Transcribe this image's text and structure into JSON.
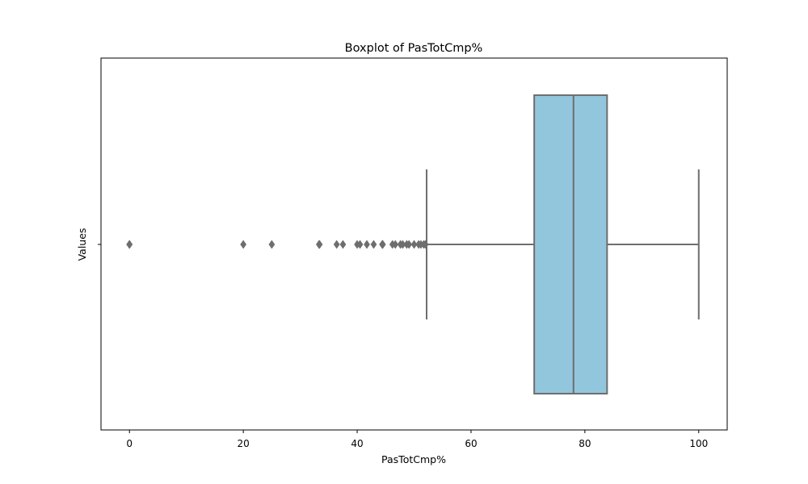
{
  "chart_data": {
    "type": "boxplot",
    "title": "Boxplot of PasTotCmp%",
    "xlabel": "PasTotCmp%",
    "ylabel": "Values",
    "xlim": [
      -5,
      105
    ],
    "x_ticks": [
      0,
      20,
      40,
      60,
      80,
      100
    ],
    "y_ticks": [
      ""
    ],
    "grid": false,
    "orientation": "horizontal",
    "box": {
      "whisker_low": 52.2,
      "q1": 71.1,
      "median": 78.0,
      "q3": 83.9,
      "whisker_high": 100.0
    },
    "outliers": [
      0,
      0,
      0,
      20.0,
      25.0,
      33.3,
      33.4,
      36.4,
      37.5,
      40.0,
      40.5,
      41.7,
      42.9,
      44.4,
      44.5,
      46.2,
      46.7,
      47.6,
      48.0,
      48.7,
      49.1,
      50.0,
      50.8,
      51.2,
      51.7,
      52.0
    ],
    "colors": {
      "box_fill": "#92c6dd",
      "line": "#6e6e6e",
      "outlier": "#6e6e6e"
    }
  }
}
